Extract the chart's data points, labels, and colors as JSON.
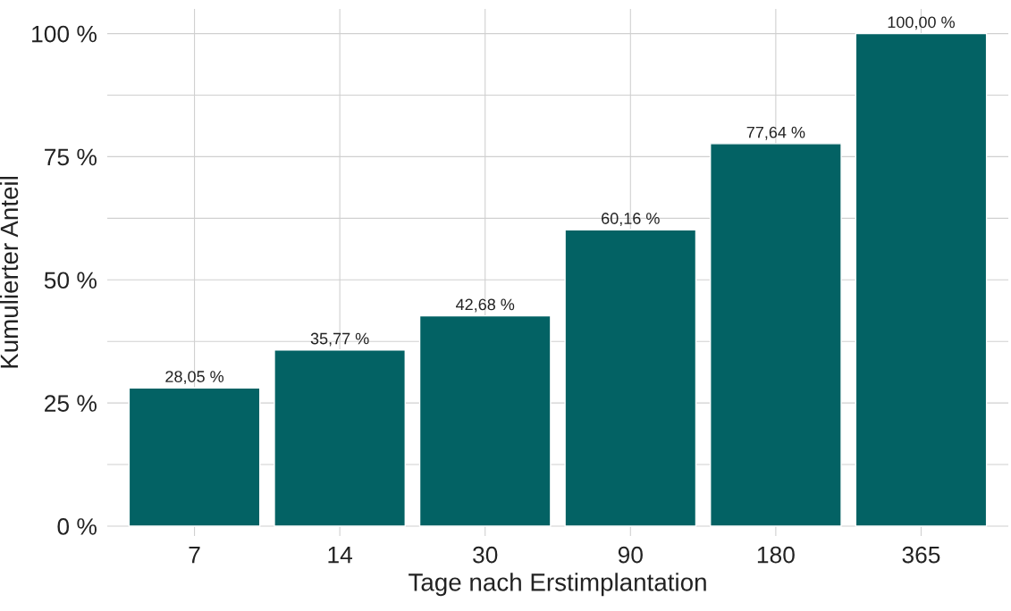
{
  "chart_data": {
    "type": "bar",
    "xlabel": "Tage nach Erstimplantation",
    "ylabel": "Kumulierter Anteil",
    "categories": [
      "7",
      "14",
      "30",
      "90",
      "180",
      "365"
    ],
    "values": [
      28.05,
      35.77,
      42.68,
      60.16,
      77.64,
      100.0
    ],
    "value_labels": [
      "28,05 %",
      "35,77 %",
      "42,68 %",
      "60,16 %",
      "77,64 %",
      "100,00 %"
    ],
    "color": "#036264",
    "ylim": [
      -2,
      105
    ],
    "yticks": [
      {
        "value": 0,
        "label": "0 %"
      },
      {
        "value": 12.5,
        "label": null
      },
      {
        "value": 25,
        "label": "25 %"
      },
      {
        "value": 37.5,
        "label": null
      },
      {
        "value": 50,
        "label": "50 %"
      },
      {
        "value": 62.5,
        "label": null
      },
      {
        "value": 75,
        "label": "75 %"
      },
      {
        "value": 87.5,
        "label": null
      },
      {
        "value": 100,
        "label": "100 %"
      }
    ],
    "grid": true
  }
}
